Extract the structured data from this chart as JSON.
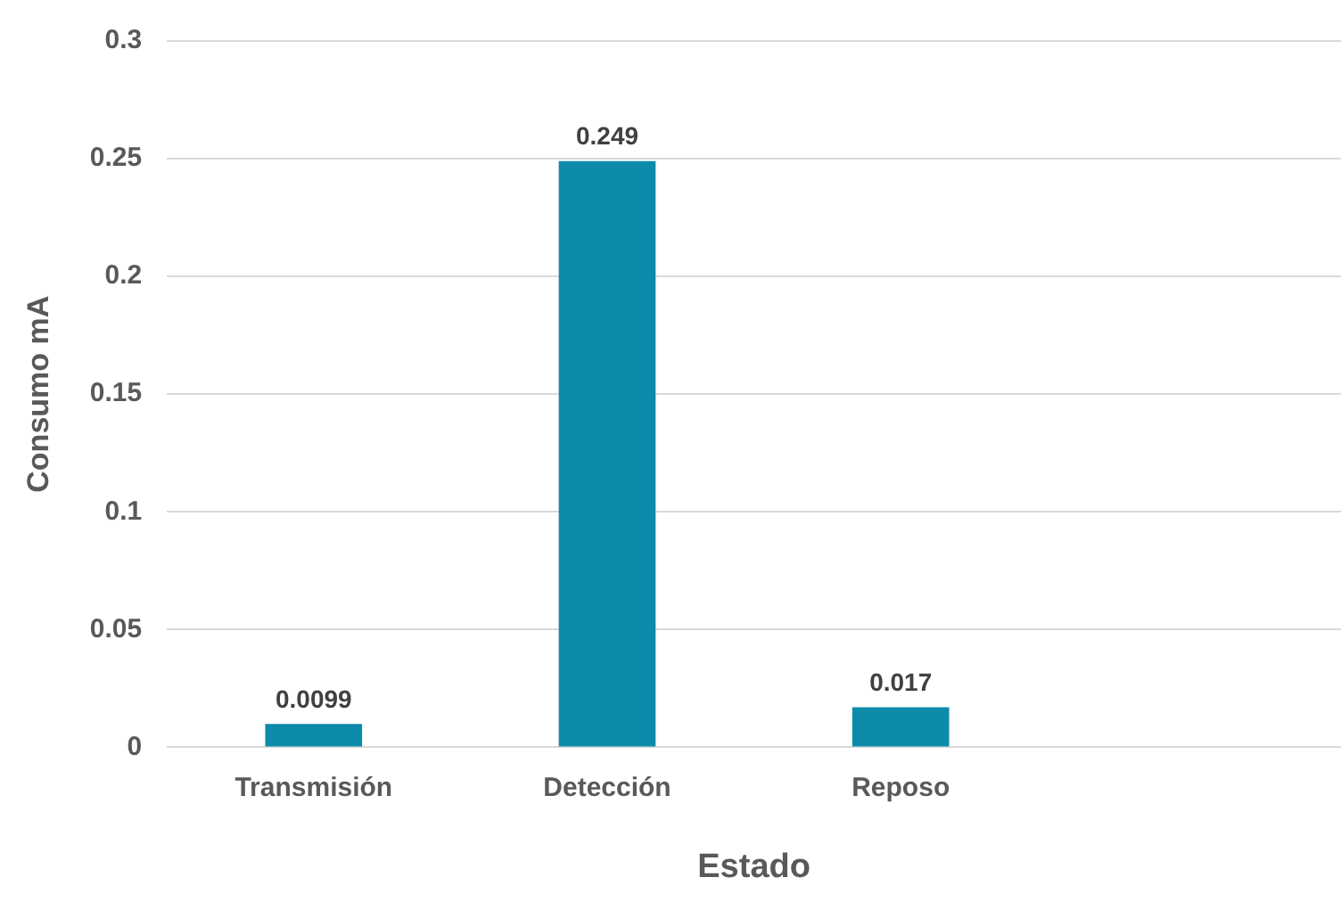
{
  "chart_data": {
    "type": "bar",
    "xlabel": "Estado",
    "ylabel": "Consumo mA",
    "categories": [
      "Transmisión",
      "Detección",
      "Reposo",
      null
    ],
    "values": [
      0.0099,
      0.249,
      0.017,
      null
    ],
    "color": "#0e8aab",
    "ylim": [
      0,
      0.3
    ],
    "yticks": [
      0,
      0.05,
      0.1,
      0.15,
      0.2,
      0.25,
      0.3
    ],
    "grid": "y",
    "data_labels": true
  }
}
